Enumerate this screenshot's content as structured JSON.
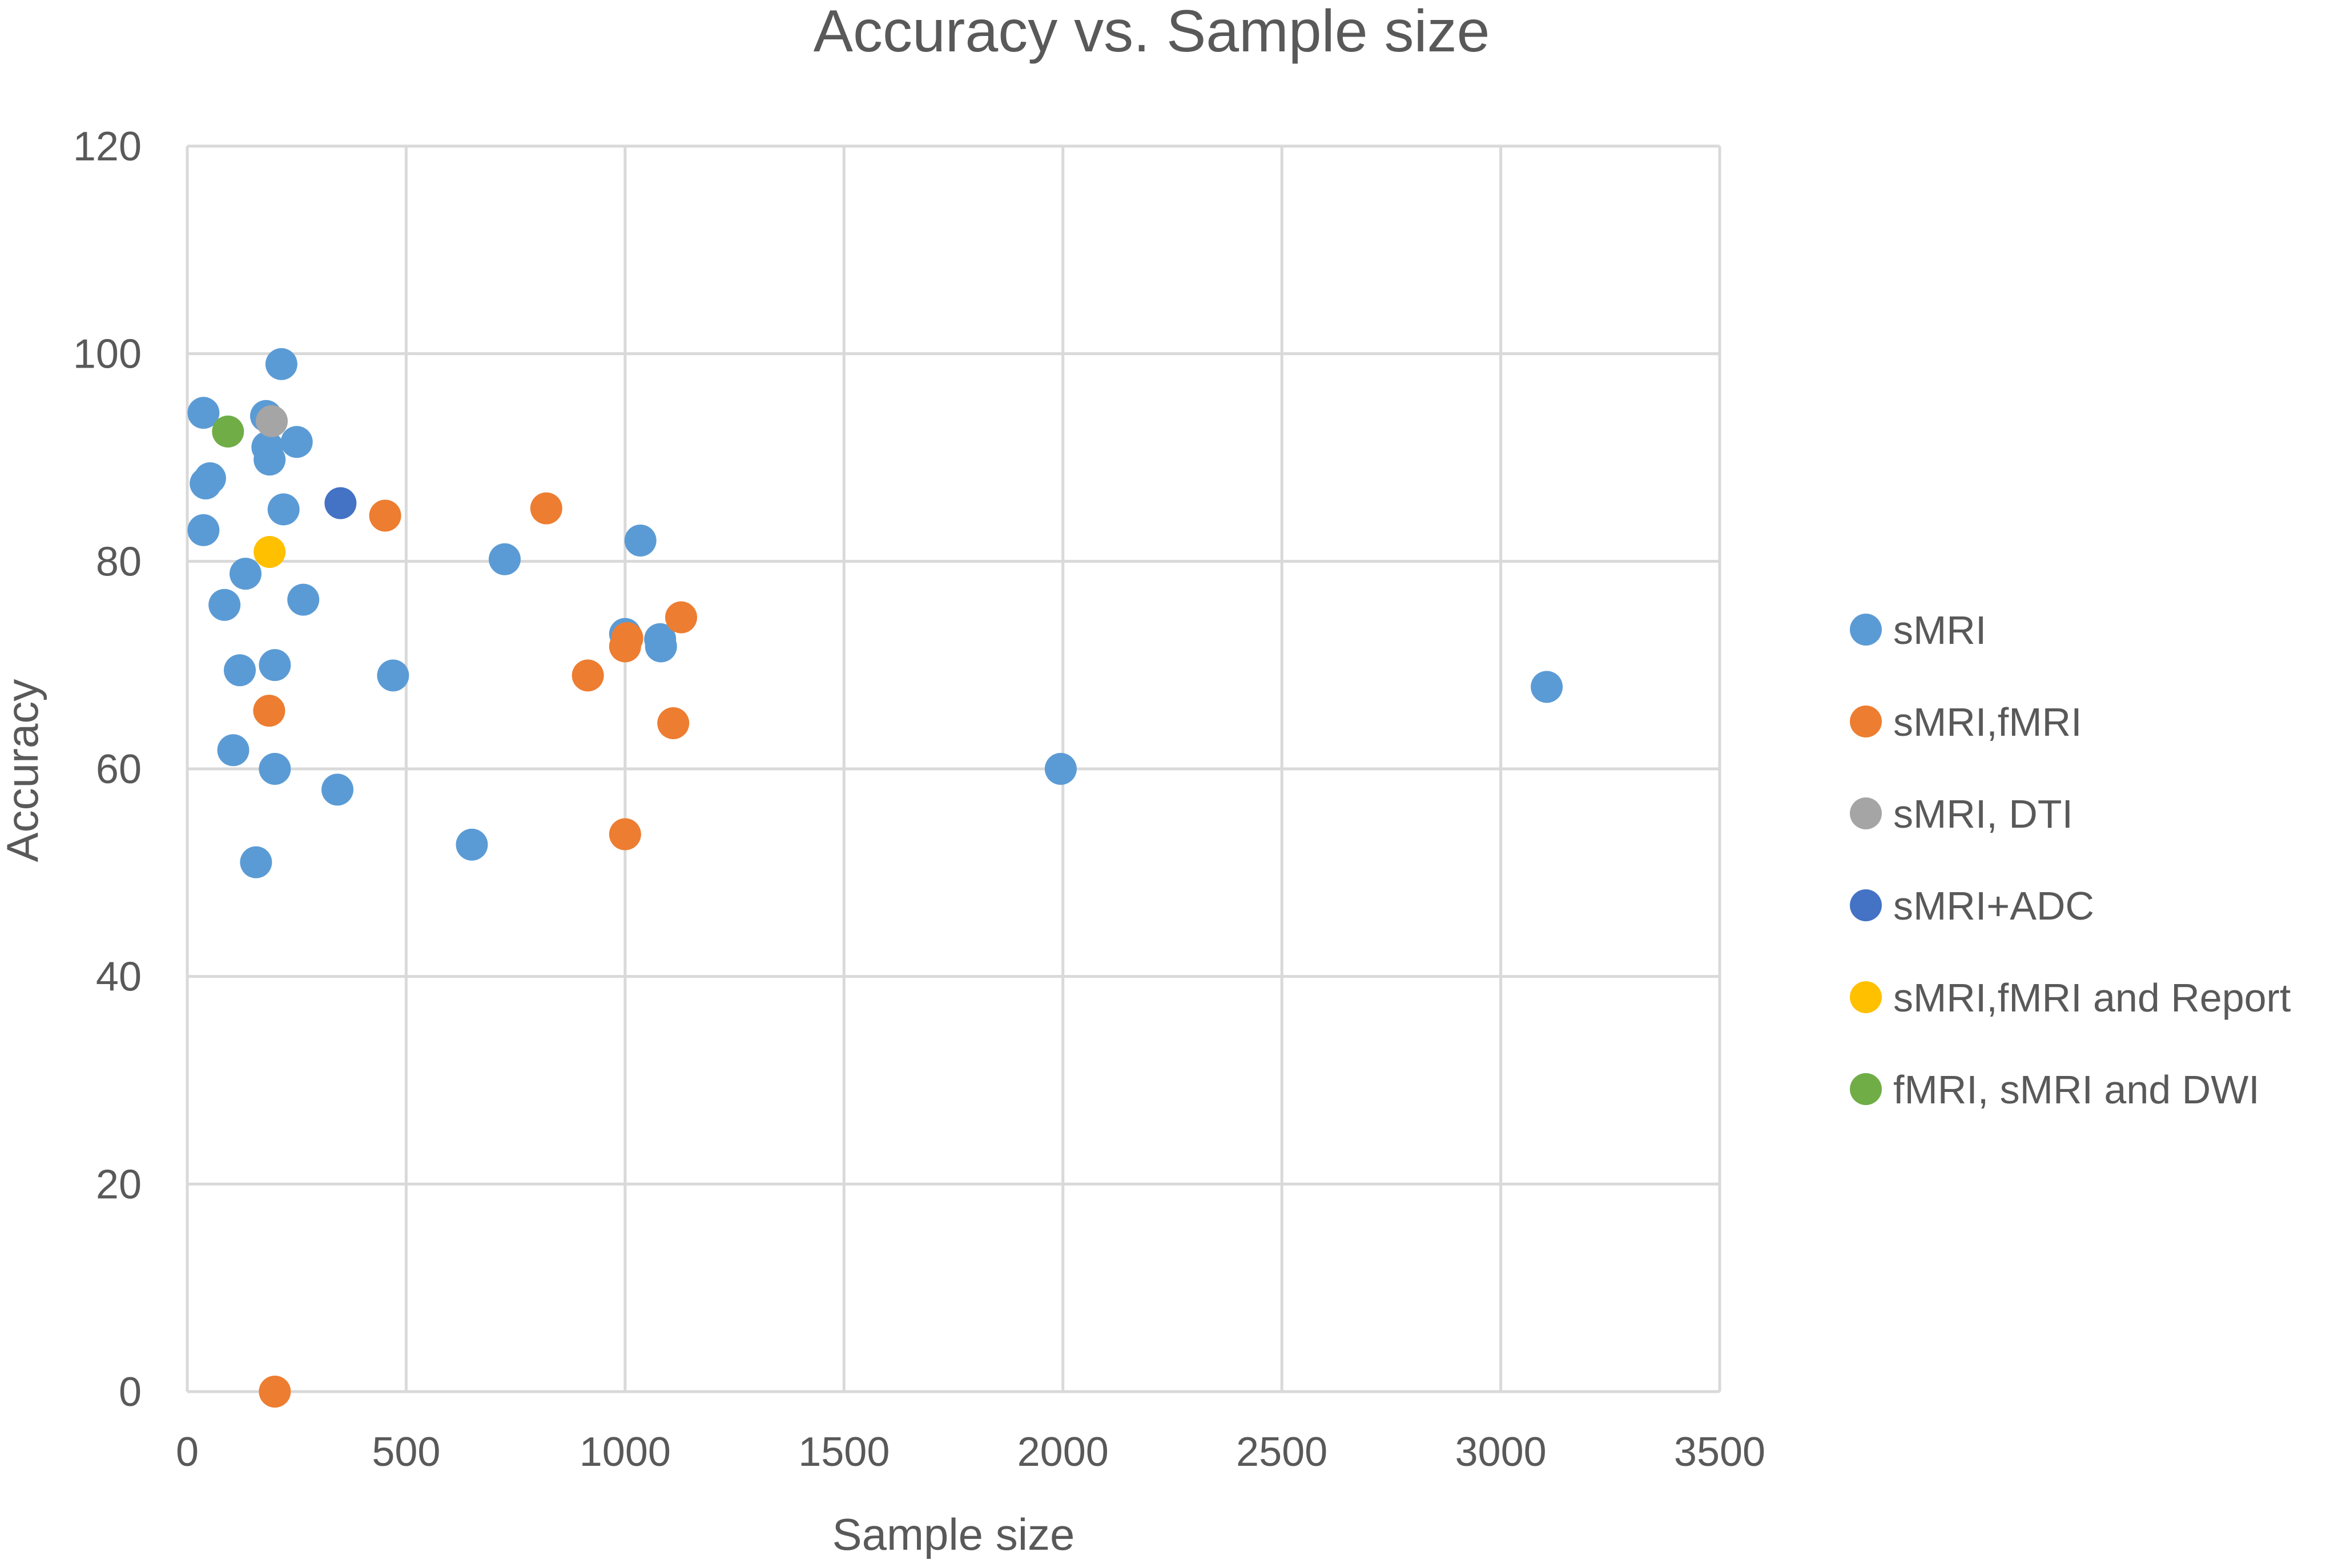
{
  "chart_data": {
    "type": "scatter",
    "title": "Accuracy vs. Sample size",
    "xlabel": "Sample size",
    "ylabel": "Accuracy",
    "xlim": [
      0,
      3500
    ],
    "ylim": [
      0,
      120
    ],
    "xticks": [
      0,
      500,
      1000,
      1500,
      2000,
      2500,
      3000,
      3500
    ],
    "yticks": [
      0,
      20,
      40,
      60,
      80,
      100,
      120
    ],
    "grid": true,
    "legend_position": "right",
    "series": [
      {
        "name": "sMRI",
        "color": "#5b9bd5",
        "points": [
          [
            37,
            94.3
          ],
          [
            37,
            83
          ],
          [
            42,
            87.5
          ],
          [
            52,
            88
          ],
          [
            85,
            75.8
          ],
          [
            105,
            61.8
          ],
          [
            120,
            69.5
          ],
          [
            133,
            78.8
          ],
          [
            157,
            51
          ],
          [
            180,
            94
          ],
          [
            183,
            91
          ],
          [
            188,
            89.8
          ],
          [
            200,
            70
          ],
          [
            200,
            60
          ],
          [
            215,
            99
          ],
          [
            220,
            85
          ],
          [
            250,
            91.5
          ],
          [
            265,
            76.3
          ],
          [
            343,
            58
          ],
          [
            470,
            69
          ],
          [
            650,
            52.7
          ],
          [
            725,
            80.2
          ],
          [
            1000,
            73
          ],
          [
            1035,
            82
          ],
          [
            1080,
            72.5
          ],
          [
            1082,
            71.8
          ],
          [
            1995,
            60
          ],
          [
            3105,
            67.9
          ]
        ]
      },
      {
        "name": "sMRI,fMRI",
        "color": "#ed7d31",
        "points": [
          [
            187,
            65.6
          ],
          [
            200,
            0
          ],
          [
            452,
            84.4
          ],
          [
            820,
            85.1
          ],
          [
            915,
            69
          ],
          [
            1000,
            53.7
          ],
          [
            1000,
            71.8
          ],
          [
            1005,
            72.6
          ],
          [
            1110,
            64.4
          ],
          [
            1128,
            74.6
          ]
        ]
      },
      {
        "name": "sMRI, DTI",
        "color": "#a5a5a5",
        "points": [
          [
            193,
            93.5
          ]
        ]
      },
      {
        "name": "sMRI+ADC",
        "color": "#4472c4",
        "points": [
          [
            350,
            85.6
          ]
        ]
      },
      {
        "name": "sMRI,fMRI and Report",
        "color": "#ffc000",
        "points": [
          [
            188,
            80.9
          ]
        ]
      },
      {
        "name": "fMRI, sMRI and DWI",
        "color": "#70ad47",
        "points": [
          [
            93,
            92.5
          ]
        ]
      }
    ]
  }
}
